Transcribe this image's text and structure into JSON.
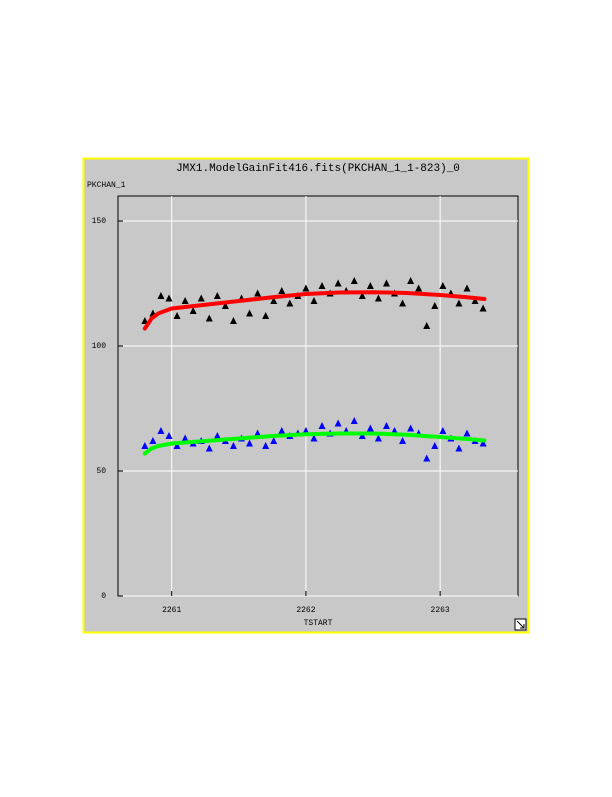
{
  "chart_data": {
    "type": "scatter",
    "title": "JMX1.ModelGainFit416.fits(PKCHAN_1_1-823)_0",
    "y_label": "PKCHAN_1",
    "x_label": "TSTART",
    "xlim": [
      2260.6,
      2263.58
    ],
    "ylim": [
      0,
      160
    ],
    "xticks": [
      2261,
      2262,
      2263
    ],
    "yticks": [
      0,
      50,
      100,
      150
    ],
    "grid": true,
    "series": [
      {
        "color": "#000000",
        "style": "markers",
        "x": [
          2260.8,
          2260.86,
          2260.92,
          2260.98,
          2261.04,
          2261.1,
          2261.16,
          2261.22,
          2261.28,
          2261.34,
          2261.4,
          2261.46,
          2261.52,
          2261.58,
          2261.64,
          2261.7,
          2261.76,
          2261.82,
          2261.88,
          2261.94,
          2262.0,
          2262.06,
          2262.12,
          2262.18,
          2262.24,
          2262.3,
          2262.36,
          2262.42,
          2262.48,
          2262.54,
          2262.6,
          2262.66,
          2262.72,
          2262.78,
          2262.84,
          2262.9,
          2262.96,
          2263.02,
          2263.08,
          2263.14,
          2263.2,
          2263.26,
          2263.32
        ],
        "values": [
          110,
          113,
          120,
          119,
          112,
          118,
          114,
          119,
          111,
          120,
          116,
          110,
          119,
          113,
          121,
          112,
          118,
          122,
          117,
          120,
          123,
          118,
          124,
          121,
          125,
          122,
          126,
          120,
          124,
          119,
          125,
          121,
          117,
          126,
          123,
          108,
          116,
          124,
          121,
          117,
          123,
          118,
          115
        ]
      },
      {
        "color": "#0000ff",
        "style": "markers",
        "x": [
          2260.8,
          2260.86,
          2260.92,
          2260.98,
          2261.04,
          2261.1,
          2261.16,
          2261.22,
          2261.28,
          2261.34,
          2261.4,
          2261.46,
          2261.52,
          2261.58,
          2261.64,
          2261.7,
          2261.76,
          2261.82,
          2261.88,
          2261.94,
          2262.0,
          2262.06,
          2262.12,
          2262.18,
          2262.24,
          2262.3,
          2262.36,
          2262.42,
          2262.48,
          2262.54,
          2262.6,
          2262.66,
          2262.72,
          2262.78,
          2262.84,
          2262.9,
          2262.96,
          2263.02,
          2263.08,
          2263.14,
          2263.2,
          2263.26,
          2263.32
        ],
        "values": [
          60,
          62,
          66,
          64,
          60,
          63,
          61,
          62,
          59,
          64,
          62,
          60,
          63,
          61,
          65,
          60,
          62,
          66,
          64,
          65,
          66,
          63,
          68,
          65,
          69,
          66,
          70,
          64,
          67,
          63,
          68,
          66,
          62,
          67,
          65,
          55,
          60,
          66,
          63,
          59,
          65,
          62,
          61
        ]
      },
      {
        "color": "#ff0000",
        "style": "line",
        "x": [
          2260.8,
          2260.85,
          2260.9,
          2261,
          2261.25,
          2261.5,
          2261.75,
          2262,
          2262.25,
          2262.5,
          2262.75,
          2263,
          2263.2,
          2263.33
        ],
        "values": [
          107,
          111,
          113,
          115,
          116.5,
          118,
          119.5,
          120.8,
          121.4,
          121.5,
          121.2,
          120.4,
          119.5,
          118.8
        ]
      },
      {
        "color": "#00ff00",
        "style": "line",
        "x": [
          2260.8,
          2260.85,
          2260.9,
          2261,
          2261.25,
          2261.5,
          2261.75,
          2262,
          2262.25,
          2262.5,
          2262.75,
          2263,
          2263.2,
          2263.33
        ],
        "values": [
          57,
          59,
          60,
          61,
          62,
          63,
          64,
          64.7,
          65,
          65,
          64.5,
          63.6,
          62.8,
          62.2
        ]
      }
    ]
  }
}
